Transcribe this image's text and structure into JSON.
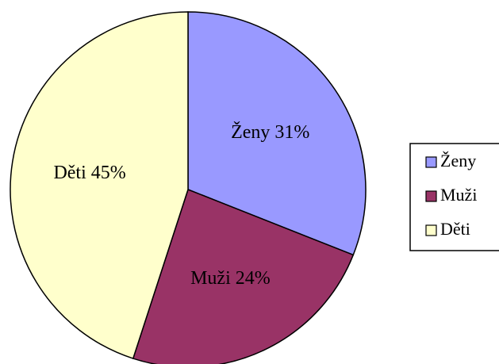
{
  "chart_data": {
    "type": "pie",
    "categories": [
      "Ženy",
      "Muži",
      "Děti"
    ],
    "values": [
      31,
      24,
      45
    ],
    "value_labels": [
      "Ženy 31%",
      "Muži 24%",
      "Děti 45%"
    ],
    "colors": [
      "#9999ff",
      "#993366",
      "#ffffcc"
    ],
    "legend": "right"
  }
}
